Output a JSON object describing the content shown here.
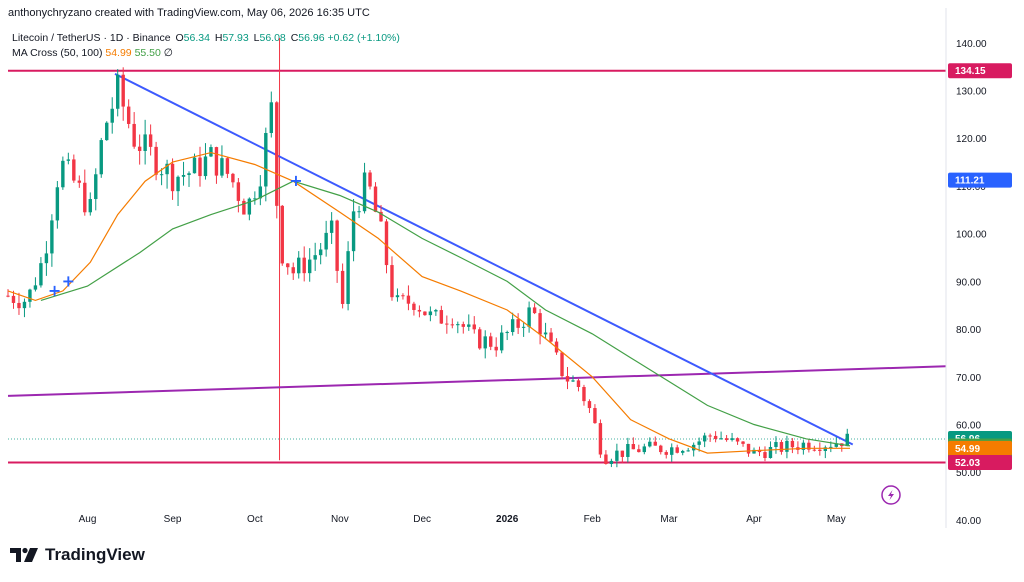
{
  "header": {
    "credit": "anthonychryzano created with TradingView.com, May 06, 2026 16:35 UTC"
  },
  "symbol": {
    "title": "Litecoin / TetherUS · 1D · Binance",
    "open_label": "O",
    "open": "56.34",
    "high_label": "H",
    "high": "57.93",
    "low_label": "L",
    "low": "56.08",
    "close_label": "C",
    "close": "56.96",
    "change": "+0.62 (+1.10%)"
  },
  "indicator": {
    "name": "MA Cross (50, 100)",
    "ma_fast": "54.99",
    "ma_slow": "55.50",
    "symbol": "∅"
  },
  "logo": {
    "text": "TradingView",
    "icon": "tradingview-logo-icon"
  },
  "colors": {
    "up": "#089981",
    "down": "#f23645",
    "ma_fast": "#f57c00",
    "ma_slow": "#43a047",
    "trendline": "#3d5afe",
    "horizontal": "#d81b60",
    "channel": "#9c27b0",
    "last_price": "#089981",
    "ma_fast_tag": "#f57c00",
    "ma_slow_tag": "#43a047"
  },
  "chart_data": {
    "type": "candlestick",
    "x_axis_labels": [
      "Aug",
      "Sep",
      "Oct",
      "Nov",
      "Dec",
      "2026",
      "Feb",
      "Mar",
      "Apr",
      "May"
    ],
    "x_axis_dates": [
      "2025-08-01",
      "2025-09-01",
      "2025-10-01",
      "2025-11-01",
      "2025-12-01",
      "2026-01-01",
      "2026-02-01",
      "2026-03-01",
      "2026-04-01",
      "2026-05-01"
    ],
    "x_range": [
      "2025-07-03",
      "2026-06-10"
    ],
    "y_ticks": [
      140,
      130,
      120,
      110,
      100,
      90,
      80,
      70,
      60,
      50,
      40
    ],
    "y_tick_labels": [
      "140.00",
      "130.00",
      "120.00",
      "110.00",
      "100.00",
      "90.00",
      "80.00",
      "70.00",
      "60.00",
      "50.00",
      "40.00"
    ],
    "ylim": [
      38.3,
      147.3
    ],
    "grid": false,
    "price_path": [
      [
        "2025-07-03",
        87
      ],
      [
        "2025-07-10",
        86
      ],
      [
        "2025-07-16",
        95
      ],
      [
        "2025-07-22",
        115
      ],
      [
        "2025-07-28",
        110
      ],
      [
        "2025-08-02",
        105
      ],
      [
        "2025-08-07",
        122
      ],
      [
        "2025-08-12",
        130
      ],
      [
        "2025-08-18",
        120
      ],
      [
        "2025-08-25",
        116
      ],
      [
        "2025-09-01",
        112
      ],
      [
        "2025-09-08",
        113
      ],
      [
        "2025-09-15",
        116
      ],
      [
        "2025-09-22",
        112
      ],
      [
        "2025-09-28",
        105
      ],
      [
        "2025-10-03",
        113
      ],
      [
        "2025-10-07",
        126
      ],
      [
        "2025-10-10",
        97
      ],
      [
        "2025-10-15",
        92
      ],
      [
        "2025-10-22",
        95
      ],
      [
        "2025-10-29",
        100
      ],
      [
        "2025-11-02",
        85
      ],
      [
        "2025-11-06",
        105
      ],
      [
        "2025-11-11",
        111
      ],
      [
        "2025-11-16",
        100
      ],
      [
        "2025-11-21",
        85
      ],
      [
        "2025-11-28",
        86
      ],
      [
        "2025-12-05",
        82
      ],
      [
        "2025-12-12",
        83
      ],
      [
        "2025-12-20",
        78
      ],
      [
        "2025-12-28",
        77
      ],
      [
        "2026-01-05",
        81
      ],
      [
        "2026-01-10",
        84
      ],
      [
        "2026-01-16",
        77
      ],
      [
        "2026-01-22",
        70
      ],
      [
        "2026-01-27",
        68
      ],
      [
        "2026-02-01",
        62
      ],
      [
        "2026-02-05",
        53
      ],
      [
        "2026-02-10",
        54
      ],
      [
        "2026-02-20",
        55
      ],
      [
        "2026-03-01",
        55
      ],
      [
        "2026-03-10",
        56
      ],
      [
        "2026-03-17",
        58
      ],
      [
        "2026-03-25",
        56
      ],
      [
        "2026-04-01",
        54
      ],
      [
        "2026-04-10",
        55
      ],
      [
        "2026-04-20",
        56
      ],
      [
        "2026-04-28",
        56
      ],
      [
        "2026-05-06",
        57
      ]
    ],
    "candle_sample_days": 2,
    "ma_fast_path": [
      [
        "2025-07-03",
        88
      ],
      [
        "2025-07-13",
        86
      ],
      [
        "2025-07-23",
        88
      ],
      [
        "2025-08-02",
        94
      ],
      [
        "2025-08-12",
        104
      ],
      [
        "2025-08-22",
        111
      ],
      [
        "2025-09-01",
        115
      ],
      [
        "2025-09-15",
        117
      ],
      [
        "2025-10-01",
        114.5
      ],
      [
        "2025-10-15",
        111
      ],
      [
        "2025-11-01",
        104.5
      ],
      [
        "2025-11-15",
        99
      ],
      [
        "2025-12-01",
        91
      ],
      [
        "2025-12-15",
        88
      ],
      [
        "2026-01-01",
        84
      ],
      [
        "2026-01-15",
        78
      ],
      [
        "2026-02-01",
        70
      ],
      [
        "2026-02-15",
        61
      ],
      [
        "2026-03-01",
        57
      ],
      [
        "2026-03-15",
        54
      ],
      [
        "2026-04-01",
        54.5
      ],
      [
        "2026-04-20",
        55
      ],
      [
        "2026-05-06",
        55
      ]
    ],
    "ma_slow_path": [
      [
        "2025-07-15",
        86
      ],
      [
        "2025-08-01",
        89
      ],
      [
        "2025-08-20",
        96
      ],
      [
        "2025-09-01",
        101
      ],
      [
        "2025-09-15",
        104
      ],
      [
        "2025-10-01",
        107
      ],
      [
        "2025-10-15",
        111
      ],
      [
        "2025-11-01",
        108
      ],
      [
        "2025-11-15",
        104.5
      ],
      [
        "2025-12-01",
        99
      ],
      [
        "2025-12-15",
        95
      ],
      [
        "2026-01-01",
        90
      ],
      [
        "2026-01-15",
        84
      ],
      [
        "2026-02-01",
        79
      ],
      [
        "2026-02-15",
        74
      ],
      [
        "2026-03-01",
        69
      ],
      [
        "2026-03-15",
        64
      ],
      [
        "2026-04-01",
        60
      ],
      [
        "2026-04-20",
        57
      ],
      [
        "2026-05-06",
        55.5
      ]
    ],
    "cross_markers": [
      {
        "date": "2025-07-20",
        "price": 88,
        "symbol": "+"
      },
      {
        "date": "2025-07-25",
        "price": 90,
        "symbol": "+"
      },
      {
        "date": "2025-10-16",
        "price": 111,
        "symbol": "+"
      }
    ],
    "trendline": {
      "from": [
        "2025-08-11",
        133.5
      ],
      "to": [
        "2026-05-07",
        55.8
      ]
    },
    "channel_line": {
      "from": [
        "2025-07-03",
        66
      ],
      "to": [
        "2026-06-10",
        72.2
      ]
    },
    "horizontal_levels": [
      134.15,
      52.03
    ],
    "vertical_marker_date": "2025-10-10",
    "price_tags": [
      {
        "label": "134.15",
        "price": 134.15,
        "color": "#d81b60"
      },
      {
        "label": "111.21",
        "price": 111.21,
        "color": "#2962ff"
      },
      {
        "label": "56.96",
        "sublabel": "07:24:12",
        "price": 56.96,
        "color": "#089981"
      },
      {
        "label": "55.50",
        "price": 55.5,
        "color": "#43a047"
      },
      {
        "label": "54.99",
        "price": 54.99,
        "color": "#f57c00"
      },
      {
        "label": "52.03",
        "price": 52.03,
        "color": "#d81b60"
      }
    ]
  }
}
